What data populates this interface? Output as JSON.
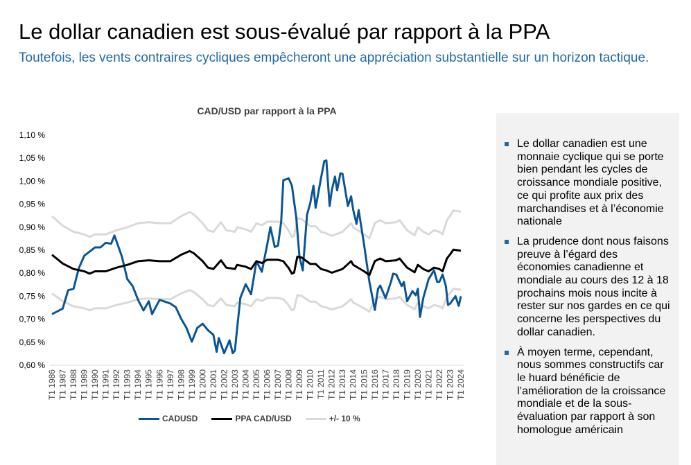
{
  "header": {
    "title": "Le dollar canadien est sous-évalué par rapport à la PPA",
    "subtitle": "Toutefois, les vents contraires cycliques empêcheront une appréciation substantielle sur un horizon tactique."
  },
  "panel": {
    "bullets": [
      "Le dollar canadien est une monnaie cyclique qui se porte bien pendant les cycles de croissance mondiale positive, ce qui profite aux prix des marchandises et à l’économie nationale",
      "La prudence dont nous faisons preuve à l’égard des économies canadienne et mondiale au cours des 12 à 18 prochains mois nous incite à rester sur nos gardes en ce qui concerne les perspectives du dollar canadien.",
      "À moyen terme, cependant, nous sommes constructifs car le huard bénéficie de l’amélioration de la croissance mondiale et de la sous-évaluation par rapport à son homologue américain"
    ],
    "bullet_color": "#1f6aa5"
  },
  "chart_data": {
    "type": "line",
    "title": "CAD/USD par rapport à la PPA",
    "xlabel": "",
    "ylabel": "",
    "ylim": [
      0.6,
      1.1
    ],
    "xlim": [
      1986,
      2024
    ],
    "y_ticks": [
      "0,60 %",
      "0,65 %",
      "0,70 %",
      "0,75 %",
      "0,80 %",
      "0,85 %",
      "0,90 %",
      "0,95 %",
      "1,00 %",
      "1,05 %",
      "1,10 %"
    ],
    "x_ticks": [
      "T1 1986",
      "T1 1987",
      "T1 1988",
      "T1 1989",
      "T1 1990",
      "T1 1991",
      "T1 1992",
      "T1 1993",
      "T1 1994",
      "T1 1995",
      "T1 1996",
      "T1 1997",
      "T1 1998",
      "T1 1999",
      "T1 2000",
      "T1 2001",
      "T1 2002",
      "T1 2003",
      "T1 2004",
      "T1 2005",
      "T1 2006",
      "T1 2007",
      "T1 2008",
      "T1 2009",
      "T1 2010",
      "T1 2011",
      "T1 2012",
      "T1 2013",
      "T1 2014",
      "T1 2015",
      "T1 2016",
      "T1 2017",
      "T1 2018",
      "T1 2019",
      "T1 2020",
      "T1 2021",
      "T1 2022",
      "T1 2023",
      "T1 2024"
    ],
    "grid": false,
    "legend": "bottom",
    "band_pct": 10,
    "series": [
      {
        "name": "CADUSD",
        "color": "#0a5595",
        "x": [
          1986,
          1987,
          1987.5,
          1988,
          1988.5,
          1989,
          1990,
          1990.5,
          1991,
          1991.5,
          1991.8,
          1992.5,
          1993,
          1993.5,
          1994,
          1994.5,
          1995,
          1995.3,
          1996,
          1997,
          1997.5,
          1998,
          1998.5,
          1999,
          1999.5,
          2000,
          2000.5,
          2001,
          2001.3,
          2001.5,
          2002,
          2002.5,
          2002.8,
          2003,
          2003.5,
          2004,
          2004.5,
          2005,
          2005.5,
          2006,
          2006.3,
          2006.7,
          2007,
          2007.3,
          2007.5,
          2008,
          2008.3,
          2008.7,
          2009,
          2009.3,
          2009.7,
          2010,
          2010.3,
          2010.5,
          2011,
          2011.3,
          2011.5,
          2011.8,
          2012,
          2012.3,
          2012.5,
          2012.8,
          2013,
          2013.5,
          2013.8,
          2014,
          2014.3,
          2014.5,
          2015,
          2015.5,
          2016,
          2016.3,
          2016.5,
          2017,
          2017.5,
          2017.7,
          2018,
          2018.5,
          2018.7,
          2019,
          2019.5,
          2019.8,
          2020,
          2020.2,
          2020.5,
          2021,
          2021.5,
          2021.8,
          2022,
          2022.3,
          2022.6,
          2022.8,
          2023,
          2023.5,
          2023.8,
          2024
        ],
        "values": [
          0.711,
          0.723,
          0.763,
          0.766,
          0.811,
          0.838,
          0.856,
          0.856,
          0.866,
          0.864,
          0.882,
          0.836,
          0.787,
          0.772,
          0.742,
          0.719,
          0.739,
          0.711,
          0.742,
          0.734,
          0.726,
          0.701,
          0.681,
          0.651,
          0.681,
          0.69,
          0.676,
          0.666,
          0.629,
          0.659,
          0.626,
          0.654,
          0.626,
          0.632,
          0.746,
          0.776,
          0.754,
          0.826,
          0.803,
          0.862,
          0.9,
          0.857,
          0.86,
          0.912,
          1.002,
          1.006,
          0.99,
          0.922,
          0.836,
          0.806,
          0.927,
          0.952,
          0.99,
          0.942,
          1.007,
          1.043,
          1.045,
          0.946,
          0.98,
          1.01,
          0.98,
          1.017,
          1.016,
          0.946,
          0.967,
          0.937,
          0.907,
          0.937,
          0.862,
          0.781,
          0.72,
          0.766,
          0.773,
          0.746,
          0.781,
          0.799,
          0.797,
          0.772,
          0.781,
          0.739,
          0.761,
          0.752,
          0.766,
          0.705,
          0.746,
          0.787,
          0.806,
          0.781,
          0.781,
          0.797,
          0.772,
          0.731,
          0.734,
          0.75,
          0.729,
          0.75
        ]
      },
      {
        "name": "PPA CAD/USD",
        "color": "#000000",
        "x": [
          1986,
          1987,
          1988,
          1989,
          1989.5,
          1990,
          1991,
          1992,
          1993,
          1994,
          1995,
          1996,
          1997,
          1998,
          1998.8,
          1999.2,
          2000,
          2000.5,
          2001,
          2001.7,
          2002.2,
          2003,
          2003.2,
          2004,
          2004.5,
          2005,
          2005.5,
          2006,
          2007,
          2007.5,
          2008,
          2008.3,
          2008.5,
          2008.8,
          2009.2,
          2010,
          2010.5,
          2011,
          2011.5,
          2012,
          2013,
          2013.8,
          2014,
          2015,
          2015.5,
          2016,
          2016.5,
          2017,
          2018,
          2018.3,
          2019,
          2019.7,
          2020,
          2020.5,
          2021,
          2021.5,
          2022,
          2022.3,
          2022.7,
          2023,
          2023.3,
          2024
        ],
        "values": [
          0.84,
          0.821,
          0.809,
          0.804,
          0.799,
          0.804,
          0.804,
          0.812,
          0.818,
          0.826,
          0.828,
          0.826,
          0.826,
          0.84,
          0.848,
          0.843,
          0.826,
          0.812,
          0.809,
          0.828,
          0.812,
          0.809,
          0.818,
          0.814,
          0.809,
          0.826,
          0.822,
          0.829,
          0.829,
          0.826,
          0.811,
          0.799,
          0.801,
          0.836,
          0.834,
          0.82,
          0.82,
          0.809,
          0.806,
          0.801,
          0.809,
          0.826,
          0.818,
          0.804,
          0.796,
          0.826,
          0.832,
          0.826,
          0.828,
          0.832,
          0.812,
          0.802,
          0.818,
          0.809,
          0.804,
          0.812,
          0.809,
          0.804,
          0.832,
          0.841,
          0.851,
          0.849
        ]
      },
      {
        "name": "+/- 10 %",
        "color": "#d9d9d9"
      }
    ]
  }
}
